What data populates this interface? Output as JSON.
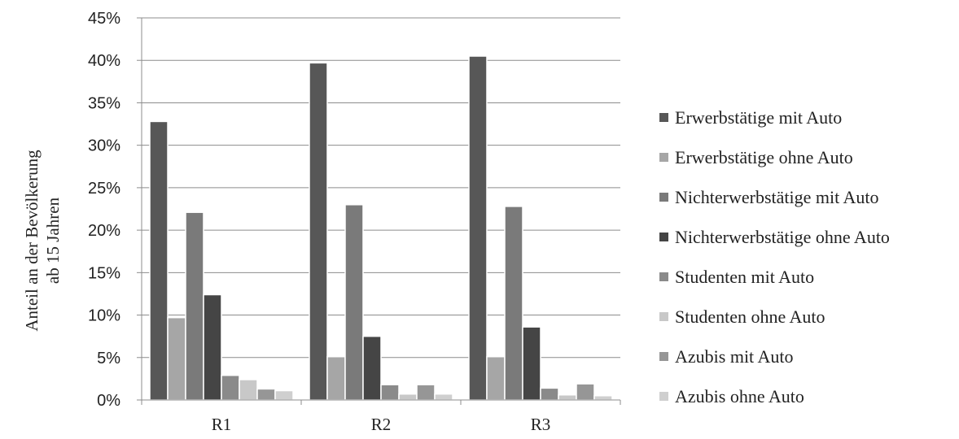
{
  "chart_data": {
    "type": "bar",
    "categories": [
      "R1",
      "R2",
      "R3"
    ],
    "ylabel": [
      "Anteil an der Bevölkerung",
      "ab 15 Jahren"
    ],
    "ylim": [
      0,
      45
    ],
    "yticks": [
      "0%",
      "5%",
      "10%",
      "15%",
      "20%",
      "25%",
      "30%",
      "35%",
      "40%",
      "45%"
    ],
    "grid": true,
    "legend_position": "right",
    "series": [
      {
        "name": "Erwerbstätige mit Auto",
        "color": "#575757",
        "values": [
          32.8,
          39.7,
          40.5
        ]
      },
      {
        "name": "Erwerbstätige ohne Auto",
        "color": "#a6a6a6",
        "values": [
          9.7,
          5.1,
          5.1
        ]
      },
      {
        "name": "Nichterwerbstätige mit Auto",
        "color": "#7a7a7a",
        "values": [
          22.1,
          23.0,
          22.8
        ]
      },
      {
        "name": "Nichterwerbstätige ohne Auto",
        "color": "#454545",
        "values": [
          12.4,
          7.5,
          8.6
        ]
      },
      {
        "name": "Studenten mit Auto",
        "color": "#8a8a8a",
        "values": [
          2.9,
          1.8,
          1.4
        ]
      },
      {
        "name": "Studenten ohne Auto",
        "color": "#c8c8c8",
        "values": [
          2.4,
          0.7,
          0.6
        ]
      },
      {
        "name": "Azubis mit Auto",
        "color": "#969696",
        "values": [
          1.3,
          1.8,
          1.9
        ]
      },
      {
        "name": "Azubis ohne Auto",
        "color": "#cfcfcf",
        "values": [
          1.1,
          0.7,
          0.5
        ]
      }
    ]
  }
}
